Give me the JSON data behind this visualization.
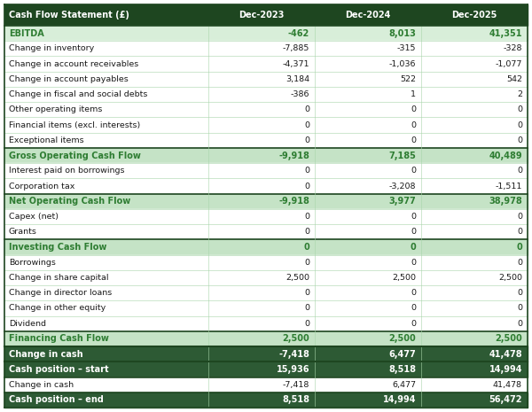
{
  "title_col": "Cash Flow Statement (£)",
  "columns": [
    "Dec-2023",
    "Dec-2024",
    "Dec-2025"
  ],
  "rows": [
    {
      "label": "EBITDA",
      "values": [
        "-462",
        "8,013",
        "41,351"
      ],
      "type": "highlight_green_bold"
    },
    {
      "label": "Change in inventory",
      "values": [
        "-7,885",
        "-315",
        "-328"
      ],
      "type": "normal"
    },
    {
      "label": "Change in account receivables",
      "values": [
        "-4,371",
        "-1,036",
        "-1,077"
      ],
      "type": "normal"
    },
    {
      "label": "Change in account payables",
      "values": [
        "3,184",
        "522",
        "542"
      ],
      "type": "normal"
    },
    {
      "label": "Change in fiscal and social debts",
      "values": [
        "-386",
        "1",
        "2"
      ],
      "type": "normal"
    },
    {
      "label": "Other operating items",
      "values": [
        "0",
        "0",
        "0"
      ],
      "type": "normal"
    },
    {
      "label": "Financial items (excl. interests)",
      "values": [
        "0",
        "0",
        "0"
      ],
      "type": "normal"
    },
    {
      "label": "Exceptional items",
      "values": [
        "0",
        "0",
        "0"
      ],
      "type": "normal"
    },
    {
      "label": "Gross Operating Cash Flow",
      "values": [
        "-9,918",
        "7,185",
        "40,489"
      ],
      "type": "subtotal_green_bold"
    },
    {
      "label": "Interest paid on borrowings",
      "values": [
        "0",
        "0",
        "0"
      ],
      "type": "normal"
    },
    {
      "label": "Corporation tax",
      "values": [
        "0",
        "-3,208",
        "-1,511"
      ],
      "type": "normal"
    },
    {
      "label": "Net Operating Cash Flow",
      "values": [
        "-9,918",
        "3,977",
        "38,978"
      ],
      "type": "subtotal_green_bold"
    },
    {
      "label": "Capex (net)",
      "values": [
        "0",
        "0",
        "0"
      ],
      "type": "normal"
    },
    {
      "label": "Grants",
      "values": [
        "0",
        "0",
        "0"
      ],
      "type": "normal"
    },
    {
      "label": "Investing Cash Flow",
      "values": [
        "0",
        "0",
        "0"
      ],
      "type": "subtotal_green_bold"
    },
    {
      "label": "Borrowings",
      "values": [
        "0",
        "0",
        "0"
      ],
      "type": "normal"
    },
    {
      "label": "Change in share capital",
      "values": [
        "2,500",
        "2,500",
        "2,500"
      ],
      "type": "normal"
    },
    {
      "label": "Change in director loans",
      "values": [
        "0",
        "0",
        "0"
      ],
      "type": "normal"
    },
    {
      "label": "Change in other equity",
      "values": [
        "0",
        "0",
        "0"
      ],
      "type": "normal"
    },
    {
      "label": "Dividend",
      "values": [
        "0",
        "0",
        "0"
      ],
      "type": "normal"
    },
    {
      "label": "Financing Cash Flow",
      "values": [
        "2,500",
        "2,500",
        "2,500"
      ],
      "type": "subtotal_green_bold"
    },
    {
      "label": "Change in cash",
      "values": [
        "-7,418",
        "6,477",
        "41,478"
      ],
      "type": "change_in_cash"
    },
    {
      "label": "Cash position – start",
      "values": [
        "15,936",
        "8,518",
        "14,994"
      ],
      "type": "footer_dark_bold"
    },
    {
      "label": "Change in cash",
      "values": [
        "-7,418",
        "6,477",
        "41,478"
      ],
      "type": "footer_dark_normal"
    },
    {
      "label": "Cash position – end",
      "values": [
        "8,518",
        "14,994",
        "56,472"
      ],
      "type": "footer_dark_bold"
    }
  ],
  "header_bg": "#1e4620",
  "header_fg": "#ffffff",
  "ebitda_bg": "#d8eed9",
  "subtotal_bg": "#c5e3c6",
  "change_in_cash_bg": "#2d5a34",
  "change_in_cash_fg": "#ffffff",
  "footer_dark_bg": "#2d5a34",
  "footer_dark_fg": "#ffffff",
  "normal_bg": "#ffffff",
  "green_bold_text": "#2e7d32",
  "normal_text": "#1a1a1a",
  "border_dark": "#1e4620",
  "border_light": "#a8d5aa"
}
